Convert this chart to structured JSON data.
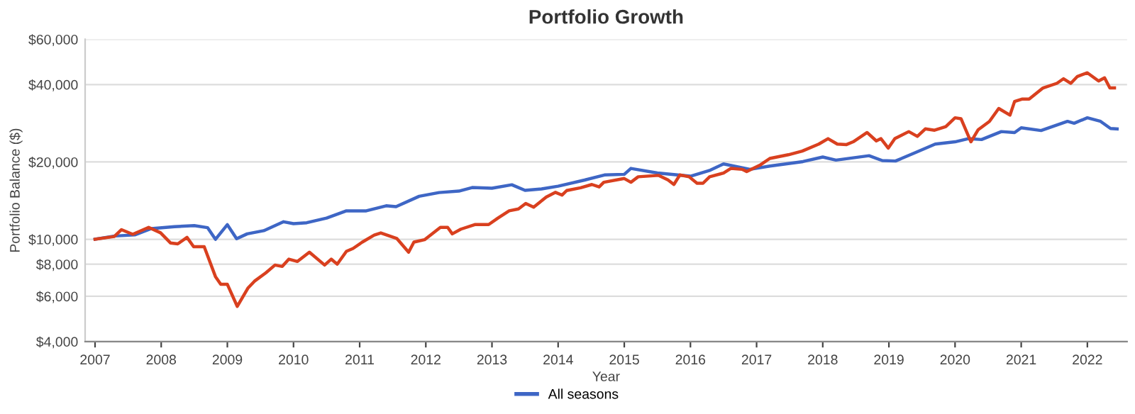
{
  "chart_data": {
    "type": "line",
    "title": "Portfolio Growth",
    "xlabel": "Year",
    "ylabel": "Portfolio Balance ($)",
    "log": true,
    "grid": "y",
    "legend": "bottom",
    "marker": "none",
    "line_style": "solid",
    "xlim": [
      2006.85,
      2022.6
    ],
    "xticks": [
      2007,
      2008,
      2009,
      2010,
      2011,
      2012,
      2013,
      2014,
      2015,
      2016,
      2017,
      2018,
      2019,
      2020,
      2021,
      2022
    ],
    "ylim": [
      4000,
      60000
    ],
    "yticks": [
      {
        "value": 4000,
        "label": "$4,000"
      },
      {
        "value": 6000,
        "label": "$6,000"
      },
      {
        "value": 8000,
        "label": "$8,000"
      },
      {
        "value": 10000,
        "label": "$10,000"
      },
      {
        "value": 20000,
        "label": "$20,000"
      },
      {
        "value": 40000,
        "label": "$40,000"
      },
      {
        "value": 60000,
        "label": "$60,000"
      }
    ],
    "series": [
      {
        "name": "All seasons",
        "color": "#3e66c5",
        "x": [
          2007.0,
          2007.3,
          2007.6,
          2007.85,
          2008.2,
          2008.5,
          2008.7,
          2008.82,
          2009.0,
          2009.14,
          2009.3,
          2009.55,
          2009.85,
          2010.0,
          2010.2,
          2010.5,
          2010.8,
          2011.1,
          2011.4,
          2011.55,
          2011.9,
          2012.2,
          2012.5,
          2012.7,
          2013.0,
          2013.3,
          2013.5,
          2013.75,
          2014.0,
          2014.4,
          2014.7,
          2015.0,
          2015.1,
          2015.5,
          2016.0,
          2016.3,
          2016.5,
          2016.9,
          2017.2,
          2017.7,
          2018.0,
          2018.2,
          2018.7,
          2018.9,
          2019.1,
          2019.4,
          2019.7,
          2020.0,
          2020.2,
          2020.4,
          2020.7,
          2020.9,
          2021.0,
          2021.3,
          2021.7,
          2021.8,
          2022.0,
          2022.2,
          2022.35,
          2022.45
        ],
        "values": [
          10000,
          10300,
          10400,
          11000,
          11200,
          11300,
          11100,
          10000,
          11400,
          10050,
          10500,
          10800,
          11700,
          11500,
          11600,
          12100,
          12900,
          12900,
          13500,
          13400,
          14700,
          15200,
          15400,
          15900,
          15800,
          16300,
          15500,
          15700,
          16100,
          17000,
          17800,
          17900,
          18870,
          18110,
          17600,
          18570,
          19650,
          18720,
          19280,
          20060,
          20900,
          20330,
          21150,
          20250,
          20170,
          21740,
          23470,
          23950,
          24640,
          24440,
          26250,
          26030,
          27160,
          26500,
          28770,
          28290,
          29710,
          28770,
          27000,
          26900
        ]
      },
      {
        "color": "#d9401f",
        "x": [
          2007.0,
          2007.29,
          2007.4,
          2007.57,
          2007.81,
          2007.99,
          2008.14,
          2008.25,
          2008.39,
          2008.49,
          2008.65,
          2008.82,
          2008.9,
          2009.0,
          2009.15,
          2009.31,
          2009.41,
          2009.58,
          2009.72,
          2009.83,
          2009.93,
          2010.06,
          2010.24,
          2010.47,
          2010.57,
          2010.66,
          2010.8,
          2010.9,
          2011.04,
          2011.22,
          2011.32,
          2011.56,
          2011.74,
          2011.82,
          2011.98,
          2012.22,
          2012.33,
          2012.4,
          2012.53,
          2012.74,
          2012.95,
          2013.09,
          2013.26,
          2013.4,
          2013.51,
          2013.63,
          2013.82,
          2013.96,
          2014.06,
          2014.13,
          2014.34,
          2014.51,
          2014.62,
          2014.69,
          2015.0,
          2015.1,
          2015.21,
          2015.52,
          2015.66,
          2015.75,
          2015.84,
          2015.98,
          2016.1,
          2016.19,
          2016.29,
          2016.5,
          2016.61,
          2016.78,
          2016.85,
          2017.06,
          2017.2,
          2017.48,
          2017.69,
          2017.94,
          2018.08,
          2018.22,
          2018.36,
          2018.46,
          2018.67,
          2018.81,
          2018.88,
          2018.99,
          2019.09,
          2019.3,
          2019.43,
          2019.55,
          2019.69,
          2019.86,
          2020.0,
          2020.09,
          2020.24,
          2020.35,
          2020.52,
          2020.66,
          2020.83,
          2020.9,
          2021.01,
          2021.12,
          2021.33,
          2021.54,
          2021.64,
          2021.75,
          2021.85,
          2022.0,
          2022.17,
          2022.26,
          2022.34,
          2022.41
        ],
        "values": [
          10000,
          10250,
          10900,
          10460,
          11130,
          10600,
          9680,
          9600,
          10170,
          9360,
          9360,
          7160,
          6680,
          6680,
          5480,
          6450,
          6870,
          7400,
          7940,
          7840,
          8370,
          8200,
          8910,
          7940,
          8370,
          8000,
          8980,
          9210,
          9750,
          10380,
          10590,
          10080,
          8910,
          9750,
          9960,
          11130,
          11130,
          10500,
          10950,
          11410,
          11410,
          12090,
          12910,
          13120,
          13790,
          13340,
          14600,
          15230,
          14860,
          15480,
          15870,
          16340,
          15990,
          16670,
          17240,
          16670,
          17510,
          17730,
          17020,
          16340,
          17800,
          17510,
          16520,
          16520,
          17510,
          18110,
          18870,
          18720,
          18350,
          19500,
          20640,
          21330,
          22040,
          23470,
          24640,
          23470,
          23370,
          23950,
          26030,
          24150,
          24640,
          22640,
          24640,
          26250,
          25150,
          26900,
          26570,
          27460,
          29710,
          29460,
          23950,
          26700,
          28770,
          32300,
          30410,
          34380,
          35110,
          35110,
          38810,
          40460,
          42160,
          40460,
          43030,
          44450,
          41300,
          42510,
          38810,
          38810
        ]
      }
    ]
  }
}
